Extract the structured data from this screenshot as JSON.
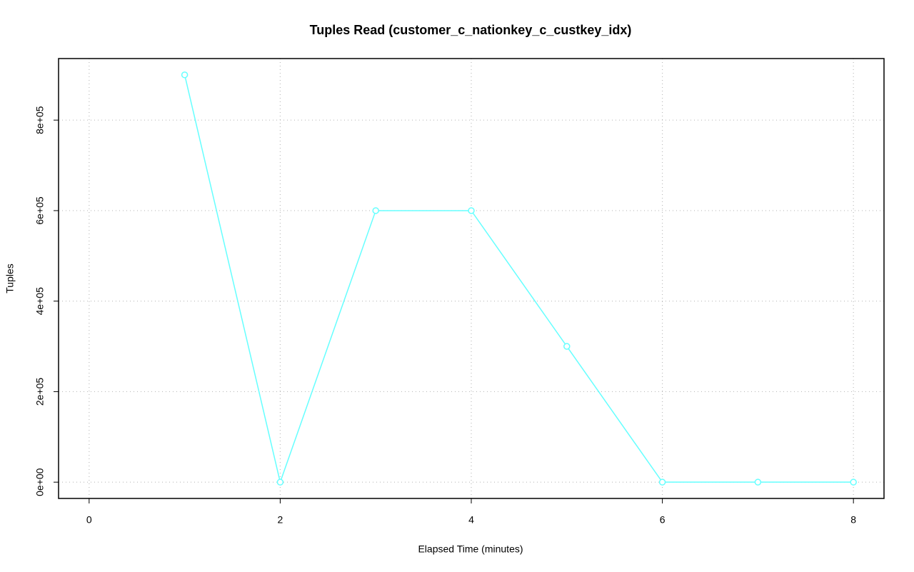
{
  "chart_data": {
    "type": "line",
    "title": "Tuples Read (customer_c_nationkey_c_custkey_idx)",
    "x_label": "Elapsed Time (minutes)",
    "y_label": "Tuples",
    "x": [
      1,
      2,
      3,
      4,
      5,
      6,
      7,
      8
    ],
    "series": [
      {
        "name": "customer_c_nationkey_c_custkey_idx",
        "color": "#66ffff",
        "values": [
          900000,
          0,
          600000,
          600000,
          300000,
          0,
          0,
          0
        ]
      }
    ],
    "xlim": [
      -0.32,
      8.32
    ],
    "ylim": [
      -36000,
      936000
    ],
    "xticks": [
      0,
      2,
      4,
      6,
      8
    ],
    "yticks": [
      {
        "value": 0,
        "label": "0e+00"
      },
      {
        "value": 200000,
        "label": "2e+05"
      },
      {
        "value": 400000,
        "label": "4e+05"
      },
      {
        "value": 600000,
        "label": "6e+05"
      },
      {
        "value": 800000,
        "label": "8e+05"
      }
    ],
    "grid": true
  }
}
